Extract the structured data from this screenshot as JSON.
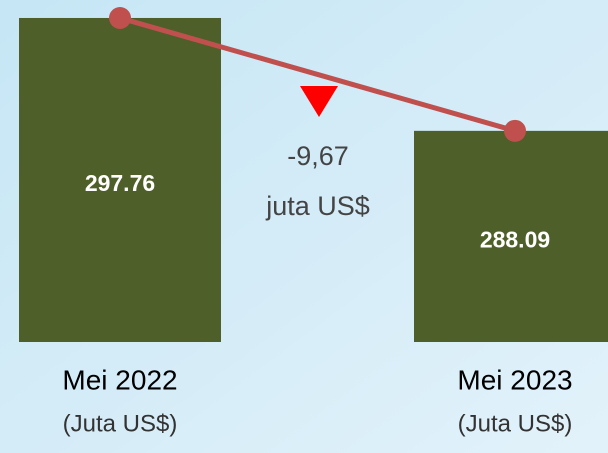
{
  "chart_data": {
    "type": "bar",
    "categories": [
      "Mei 2022",
      "Mei 2023"
    ],
    "category_unit": "(Juta US$)",
    "values": [
      297.76,
      288.09
    ],
    "color": "#4e5f29",
    "line_color": "#c0504d",
    "ylim": [
      270,
      299.3
    ],
    "annotations": [
      "-9,67",
      "juta US$"
    ],
    "annotation_marker_color": "#ff0000"
  }
}
